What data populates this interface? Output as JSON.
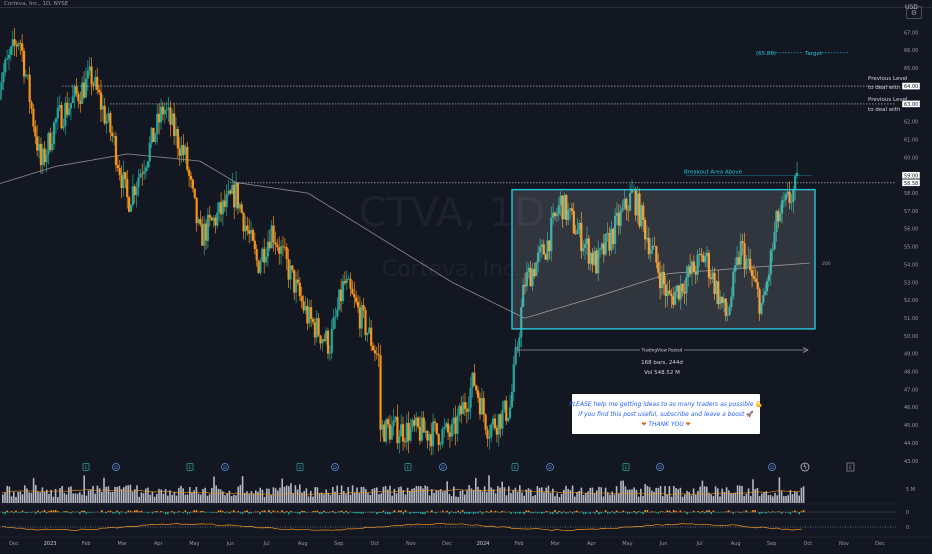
{
  "header": {
    "symbol_line": "Corteva, Inc., 1D, NYSE",
    "currency": "USD"
  },
  "watermark": {
    "ticker": "CTVA, 1D",
    "company": "Corteva, Inc."
  },
  "colors": {
    "background": "#131722",
    "up": "#26a69a",
    "down": "#f7931a",
    "box_border": "#26c6da",
    "ma": "#9e9e9e",
    "dotted": "#d1d4dc",
    "target": "#26c6da"
  },
  "annotations": {
    "target_price": "(65.86)",
    "target_label": "Target",
    "prev_level_1a": "Previous Level",
    "prev_level_1b": "to deal with",
    "prev_level_2a": "Previous Level",
    "prev_level_2b": "to deal with",
    "breakout": "Breakout Area Above",
    "ma_tag": "200",
    "range_label": "TradingView Posted",
    "range_bars": "168 bars, 244d",
    "range_vol": "Vol 548.52 M",
    "volume_axis": "5 M",
    "osc_axis_1": "0",
    "osc_axis_2": "0"
  },
  "note": {
    "line1": "PLEASE help me getting ideas to as many traders as possible",
    "line1_emoji": "💪",
    "line2": "If you find this post useful, subscribe and leave a boost",
    "line2_emoji": "🚀",
    "line3": "THANK YOU",
    "line3_emoji": "❤"
  },
  "price_tags": [
    {
      "value": "64.00",
      "kind": "level"
    },
    {
      "value": "63.00",
      "kind": "level"
    },
    {
      "value": "59.00",
      "kind": "level"
    },
    {
      "value": "58.58",
      "kind": "last"
    }
  ],
  "chart_data": {
    "type": "candlestick",
    "title": "",
    "symbol": "CTVA",
    "interval": "1D",
    "xlabel": "",
    "ylabel": "",
    "ylim": [
      42.5,
      68.5
    ],
    "y_ticks": [
      "67.00",
      "66.00",
      "65.00",
      "64.00",
      "63.00",
      "62.00",
      "61.00",
      "60.00",
      "59.00",
      "58.00",
      "57.00",
      "56.00",
      "55.00",
      "54.00",
      "53.00",
      "52.00",
      "51.00",
      "50.00",
      "49.00",
      "48.00",
      "47.00",
      "46.00",
      "45.00",
      "44.00",
      "43.00"
    ],
    "x_ticks": [
      "Dec",
      "2023",
      "Feb",
      "Mar",
      "Apr",
      "May",
      "Jun",
      "Jul",
      "Aug",
      "Sep",
      "Oct",
      "Nov",
      "Dec",
      "2024",
      "Feb",
      "Mar",
      "Apr",
      "May",
      "Jun",
      "Jul",
      "Aug",
      "Sep",
      "Oct",
      "Nov",
      "Dec"
    ],
    "price_path": [
      {
        "t": "Nov 2022",
        "close": 64.0
      },
      {
        "t": "Dec 2022",
        "close": 66.8
      },
      {
        "t": "Dec 2022 end",
        "close": 59.5
      },
      {
        "t": "Jan 2023",
        "close": 62.0
      },
      {
        "t": "Feb 2023",
        "close": 64.5
      },
      {
        "t": "Feb 2023 end",
        "close": 61.0
      },
      {
        "t": "Mar 2023",
        "close": 57.5
      },
      {
        "t": "Mar 2023 end",
        "close": 60.5
      },
      {
        "t": "Apr 2023",
        "close": 62.8
      },
      {
        "t": "Apr 2023 end",
        "close": 60.0
      },
      {
        "t": "May 2023",
        "close": 55.5
      },
      {
        "t": "Jun 2023",
        "close": 58.0
      },
      {
        "t": "Jun 2023 end",
        "close": 54.0
      },
      {
        "t": "Jul 2023",
        "close": 56.0
      },
      {
        "t": "Aug 2023",
        "close": 51.0
      },
      {
        "t": "Aug 2023 end",
        "close": 49.5
      },
      {
        "t": "Sep 2023",
        "close": 53.0
      },
      {
        "t": "Sep 2023 end",
        "close": 50.5
      },
      {
        "t": "Oct 2023",
        "close": 48.5
      },
      {
        "t": "Nov 2023",
        "close": 44.0
      },
      {
        "t": "Nov 2023 mid",
        "close": 46.5
      },
      {
        "t": "Dec 2023",
        "close": 44.5
      },
      {
        "t": "Dec 2023 end",
        "close": 47.5
      },
      {
        "t": "Jan 2024",
        "close": 44.8
      },
      {
        "t": "Jan 2024 end",
        "close": 46.0
      },
      {
        "t": "Feb 2024",
        "close": 53.0
      },
      {
        "t": "Feb 2024 end",
        "close": 55.0
      },
      {
        "t": "Mar 2024",
        "close": 57.5
      },
      {
        "t": "Apr 2024",
        "close": 54.0
      },
      {
        "t": "May 2024",
        "close": 58.0
      },
      {
        "t": "Jun 2024",
        "close": 52.0
      },
      {
        "t": "Jul 2024",
        "close": 54.5
      },
      {
        "t": "Jul 2024 end",
        "close": 51.0
      },
      {
        "t": "Aug 2024",
        "close": 55.0
      },
      {
        "t": "Aug 2024 end",
        "close": 51.5
      },
      {
        "t": "Sep 2024",
        "close": 56.5
      },
      {
        "t": "Sep 2024 end",
        "close": 58.58
      }
    ],
    "ma_200": [
      {
        "t": "Nov 2022",
        "v": 58.5
      },
      {
        "t": "Jan 2023",
        "v": 59.5
      },
      {
        "t": "Mar 2023",
        "v": 60.2
      },
      {
        "t": "May 2023",
        "v": 59.8
      },
      {
        "t": "Jun 2023",
        "v": 58.6
      },
      {
        "t": "Aug 2023",
        "v": 58.0
      },
      {
        "t": "Oct 2023",
        "v": 55.5
      },
      {
        "t": "Dec 2023",
        "v": 53.0
      },
      {
        "t": "Feb 2024",
        "v": 51.0
      },
      {
        "t": "Apr 2024",
        "v": 52.2
      },
      {
        "t": "Jun 2024",
        "v": 53.5
      },
      {
        "t": "Aug 2024",
        "v": 53.8
      },
      {
        "t": "Oct 2024",
        "v": 54.1
      }
    ],
    "levels": [
      {
        "value": 64.0,
        "label": "Previous Level to deal with"
      },
      {
        "value": 63.0,
        "label": "Previous Level to deal with"
      },
      {
        "value": 58.58,
        "label": "Breakout Area Above"
      }
    ],
    "target": {
      "value": 65.86,
      "label": "Target"
    },
    "range_box": {
      "from": "Feb 2024",
      "to": "Sep 2024",
      "high": 58.2,
      "low": 50.4
    },
    "events": [
      "E",
      "D",
      "E",
      "D",
      "E",
      "D",
      "E",
      "D",
      "E",
      "D",
      "E",
      "D",
      "D"
    ],
    "grid": false,
    "legend": "none"
  }
}
